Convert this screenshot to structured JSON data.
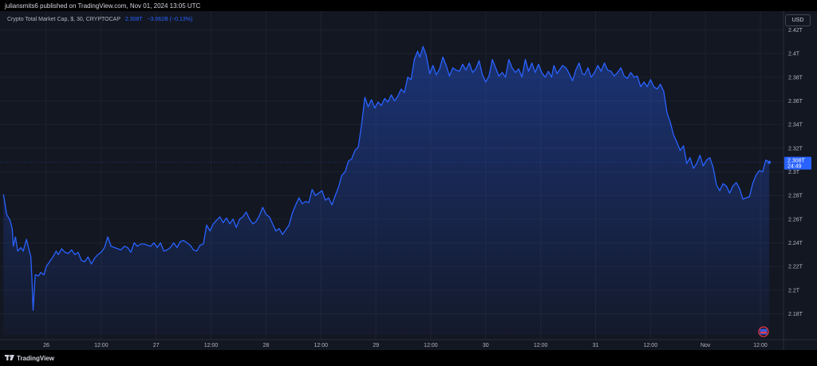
{
  "header": {
    "publisher_line": "juliansmits6 published on TradingView.com, Nov 01, 2024 13:05 UTC"
  },
  "legend": {
    "symbol": "Crypto Total Market Cap, $, 30, CRYPTOCAP",
    "value": "2.308T",
    "change": "−3.062B (−0.13%)"
  },
  "currency_button": "USD",
  "price_tag": {
    "price": "2.308T",
    "countdown": "24:49"
  },
  "footer": {
    "brand": "TradingView"
  },
  "colors": {
    "line": "#2962ff",
    "background": "#131722",
    "grid": "#1e222d",
    "axis_text": "#b2b5be"
  },
  "chart_data": {
    "type": "area",
    "title": "Crypto Total Market Cap, $, 30, CRYPTOCAP",
    "unit": "T",
    "ylim": [
      2.16,
      2.43
    ],
    "y_ticks": [
      2.18,
      2.2,
      2.22,
      2.24,
      2.26,
      2.28,
      2.3,
      2.32,
      2.34,
      2.36,
      2.38,
      2.4,
      2.42
    ],
    "y_tick_labels": [
      "2.18T",
      "2.2T",
      "2.22T",
      "2.24T",
      "2.26T",
      "2.28T",
      "2.3T",
      "2.32T",
      "2.34T",
      "2.36T",
      "2.38T",
      "2.4T",
      "2.42T"
    ],
    "x_ticks": [
      {
        "day": 1,
        "label": "26"
      },
      {
        "day": 1.5,
        "label": "12:00"
      },
      {
        "day": 2,
        "label": "27"
      },
      {
        "day": 2.5,
        "label": "12:00"
      },
      {
        "day": 3,
        "label": "28"
      },
      {
        "day": 3.5,
        "label": "12:00"
      },
      {
        "day": 4,
        "label": "29"
      },
      {
        "day": 4.5,
        "label": "12:00"
      },
      {
        "day": 5,
        "label": "30"
      },
      {
        "day": 5.5,
        "label": "12:00"
      },
      {
        "day": 6,
        "label": "31"
      },
      {
        "day": 6.5,
        "label": "12:00"
      },
      {
        "day": 7,
        "label": "Nov"
      },
      {
        "day": 7.5,
        "label": "12:00"
      }
    ],
    "x_range_days": [
      0.61,
      8.0
    ],
    "grid": true,
    "series": [
      {
        "points": [
          [
            0.61,
            2.281
          ],
          [
            0.64,
            2.264
          ],
          [
            0.67,
            2.259
          ],
          [
            0.69,
            2.252
          ],
          [
            0.7,
            2.237
          ],
          [
            0.72,
            2.245
          ],
          [
            0.74,
            2.233
          ],
          [
            0.77,
            2.236
          ],
          [
            0.79,
            2.233
          ],
          [
            0.82,
            2.243
          ],
          [
            0.84,
            2.235
          ],
          [
            0.86,
            2.228
          ],
          [
            0.87,
            2.208
          ],
          [
            0.88,
            2.183
          ],
          [
            0.9,
            2.213
          ],
          [
            0.93,
            2.212
          ],
          [
            0.95,
            2.215
          ],
          [
            0.98,
            2.213
          ],
          [
            1.0,
            2.22
          ],
          [
            1.03,
            2.224
          ],
          [
            1.06,
            2.228
          ],
          [
            1.09,
            2.233
          ],
          [
            1.11,
            2.23
          ],
          [
            1.14,
            2.235
          ],
          [
            1.17,
            2.232
          ],
          [
            1.2,
            2.231
          ],
          [
            1.23,
            2.234
          ],
          [
            1.26,
            2.23
          ],
          [
            1.29,
            2.232
          ],
          [
            1.32,
            2.225
          ],
          [
            1.35,
            2.224
          ],
          [
            1.38,
            2.228
          ],
          [
            1.41,
            2.222
          ],
          [
            1.44,
            2.227
          ],
          [
            1.47,
            2.23
          ],
          [
            1.5,
            2.232
          ],
          [
            1.53,
            2.236
          ],
          [
            1.56,
            2.245
          ],
          [
            1.59,
            2.237
          ],
          [
            1.62,
            2.236
          ],
          [
            1.65,
            2.235
          ],
          [
            1.68,
            2.234
          ],
          [
            1.71,
            2.237
          ],
          [
            1.74,
            2.236
          ],
          [
            1.77,
            2.232
          ],
          [
            1.8,
            2.24
          ],
          [
            1.83,
            2.237
          ],
          [
            1.86,
            2.239
          ],
          [
            1.89,
            2.239
          ],
          [
            1.92,
            2.238
          ],
          [
            1.95,
            2.237
          ],
          [
            1.98,
            2.24
          ],
          [
            2.01,
            2.236
          ],
          [
            2.04,
            2.24
          ],
          [
            2.07,
            2.233
          ],
          [
            2.1,
            2.234
          ],
          [
            2.13,
            2.236
          ],
          [
            2.16,
            2.24
          ],
          [
            2.19,
            2.236
          ],
          [
            2.22,
            2.241
          ],
          [
            2.25,
            2.242
          ],
          [
            2.28,
            2.24
          ],
          [
            2.31,
            2.238
          ],
          [
            2.34,
            2.234
          ],
          [
            2.37,
            2.233
          ],
          [
            2.4,
            2.238
          ],
          [
            2.43,
            2.239
          ],
          [
            2.46,
            2.255
          ],
          [
            2.49,
            2.25
          ],
          [
            2.52,
            2.256
          ],
          [
            2.55,
            2.259
          ],
          [
            2.58,
            2.262
          ],
          [
            2.61,
            2.257
          ],
          [
            2.64,
            2.261
          ],
          [
            2.67,
            2.256
          ],
          [
            2.7,
            2.26
          ],
          [
            2.73,
            2.253
          ],
          [
            2.76,
            2.26
          ],
          [
            2.79,
            2.262
          ],
          [
            2.82,
            2.266
          ],
          [
            2.85,
            2.26
          ],
          [
            2.88,
            2.256
          ],
          [
            2.91,
            2.258
          ],
          [
            2.94,
            2.263
          ],
          [
            2.97,
            2.27
          ],
          [
            3.0,
            2.264
          ],
          [
            3.03,
            2.262
          ],
          [
            3.06,
            2.256
          ],
          [
            3.09,
            2.25
          ],
          [
            3.12,
            2.252
          ],
          [
            3.15,
            2.247
          ],
          [
            3.18,
            2.251
          ],
          [
            3.21,
            2.255
          ],
          [
            3.24,
            2.265
          ],
          [
            3.27,
            2.272
          ],
          [
            3.3,
            2.278
          ],
          [
            3.33,
            2.273
          ],
          [
            3.36,
            2.275
          ],
          [
            3.39,
            2.274
          ],
          [
            3.42,
            2.285
          ],
          [
            3.45,
            2.28
          ],
          [
            3.48,
            2.282
          ],
          [
            3.51,
            2.284
          ],
          [
            3.54,
            2.276
          ],
          [
            3.57,
            2.278
          ],
          [
            3.6,
            2.272
          ],
          [
            3.63,
            2.28
          ],
          [
            3.66,
            2.287
          ],
          [
            3.69,
            2.297
          ],
          [
            3.72,
            2.3
          ],
          [
            3.75,
            2.309
          ],
          [
            3.78,
            2.311
          ],
          [
            3.81,
            2.318
          ],
          [
            3.84,
            2.321
          ],
          [
            3.87,
            2.34
          ],
          [
            3.9,
            2.363
          ],
          [
            3.93,
            2.355
          ],
          [
            3.96,
            2.361
          ],
          [
            3.99,
            2.354
          ],
          [
            4.02,
            2.359
          ],
          [
            4.05,
            2.356
          ],
          [
            4.08,
            2.362
          ],
          [
            4.11,
            2.359
          ],
          [
            4.14,
            2.365
          ],
          [
            4.17,
            2.36
          ],
          [
            4.2,
            2.364
          ],
          [
            4.23,
            2.37
          ],
          [
            4.26,
            2.367
          ],
          [
            4.29,
            2.38
          ],
          [
            4.32,
            2.378
          ],
          [
            4.35,
            2.395
          ],
          [
            4.38,
            2.402
          ],
          [
            4.4,
            2.397
          ],
          [
            4.43,
            2.406
          ],
          [
            4.46,
            2.398
          ],
          [
            4.49,
            2.383
          ],
          [
            4.52,
            2.39
          ],
          [
            4.55,
            2.382
          ],
          [
            4.58,
            2.387
          ],
          [
            4.61,
            2.397
          ],
          [
            4.64,
            2.39
          ],
          [
            4.67,
            2.381
          ],
          [
            4.7,
            2.388
          ],
          [
            4.73,
            2.386
          ],
          [
            4.76,
            2.385
          ],
          [
            4.79,
            2.391
          ],
          [
            4.82,
            2.386
          ],
          [
            4.85,
            2.392
          ],
          [
            4.88,
            2.384
          ],
          [
            4.91,
            2.387
          ],
          [
            4.94,
            2.394
          ],
          [
            4.97,
            2.382
          ],
          [
            5.0,
            2.376
          ],
          [
            5.03,
            2.381
          ],
          [
            5.06,
            2.395
          ],
          [
            5.09,
            2.388
          ],
          [
            5.12,
            2.381
          ],
          [
            5.15,
            2.384
          ],
          [
            5.18,
            2.38
          ],
          [
            5.21,
            2.395
          ],
          [
            5.24,
            2.388
          ],
          [
            5.27,
            2.384
          ],
          [
            5.3,
            2.387
          ],
          [
            5.33,
            2.38
          ],
          [
            5.36,
            2.395
          ],
          [
            5.39,
            2.385
          ],
          [
            5.42,
            2.392
          ],
          [
            5.45,
            2.384
          ],
          [
            5.48,
            2.391
          ],
          [
            5.51,
            2.384
          ],
          [
            5.54,
            2.38
          ],
          [
            5.57,
            2.385
          ],
          [
            5.6,
            2.38
          ],
          [
            5.62,
            2.39
          ],
          [
            5.65,
            2.383
          ],
          [
            5.67,
            2.386
          ],
          [
            5.7,
            2.39
          ],
          [
            5.73,
            2.388
          ],
          [
            5.76,
            2.383
          ],
          [
            5.79,
            2.377
          ],
          [
            5.82,
            2.386
          ],
          [
            5.85,
            2.392
          ],
          [
            5.88,
            2.383
          ],
          [
            5.9,
            2.382
          ],
          [
            5.93,
            2.388
          ],
          [
            5.96,
            2.38
          ],
          [
            5.99,
            2.384
          ],
          [
            6.02,
            2.39
          ],
          [
            6.05,
            2.385
          ],
          [
            6.08,
            2.392
          ],
          [
            6.11,
            2.386
          ],
          [
            6.14,
            2.385
          ],
          [
            6.17,
            2.381
          ],
          [
            6.2,
            2.384
          ],
          [
            6.23,
            2.388
          ],
          [
            6.26,
            2.381
          ],
          [
            6.29,
            2.379
          ],
          [
            6.32,
            2.384
          ],
          [
            6.35,
            2.38
          ],
          [
            6.38,
            2.381
          ],
          [
            6.41,
            2.372
          ],
          [
            6.44,
            2.376
          ],
          [
            6.47,
            2.372
          ],
          [
            6.5,
            2.378
          ],
          [
            6.53,
            2.372
          ],
          [
            6.56,
            2.37
          ],
          [
            6.59,
            2.374
          ],
          [
            6.62,
            2.368
          ],
          [
            6.65,
            2.35
          ],
          [
            6.68,
            2.342
          ],
          [
            6.71,
            2.331
          ],
          [
            6.74,
            2.325
          ],
          [
            6.77,
            2.318
          ],
          [
            6.8,
            2.322
          ],
          [
            6.83,
            2.307
          ],
          [
            6.86,
            2.312
          ],
          [
            6.89,
            2.303
          ],
          [
            6.92,
            2.307
          ],
          [
            6.95,
            2.314
          ],
          [
            6.98,
            2.305
          ],
          [
            7.01,
            2.31
          ],
          [
            7.04,
            2.312
          ],
          [
            7.07,
            2.304
          ],
          [
            7.1,
            2.289
          ],
          [
            7.13,
            2.284
          ],
          [
            7.16,
            2.29
          ],
          [
            7.19,
            2.288
          ],
          [
            7.22,
            2.282
          ],
          [
            7.25,
            2.288
          ],
          [
            7.28,
            2.291
          ],
          [
            7.31,
            2.286
          ],
          [
            7.34,
            2.277
          ],
          [
            7.37,
            2.278
          ],
          [
            7.4,
            2.279
          ],
          [
            7.43,
            2.29
          ],
          [
            7.46,
            2.297
          ],
          [
            7.49,
            2.301
          ],
          [
            7.52,
            2.3
          ],
          [
            7.55,
            2.31
          ],
          [
            7.58,
            2.308
          ]
        ]
      }
    ]
  }
}
